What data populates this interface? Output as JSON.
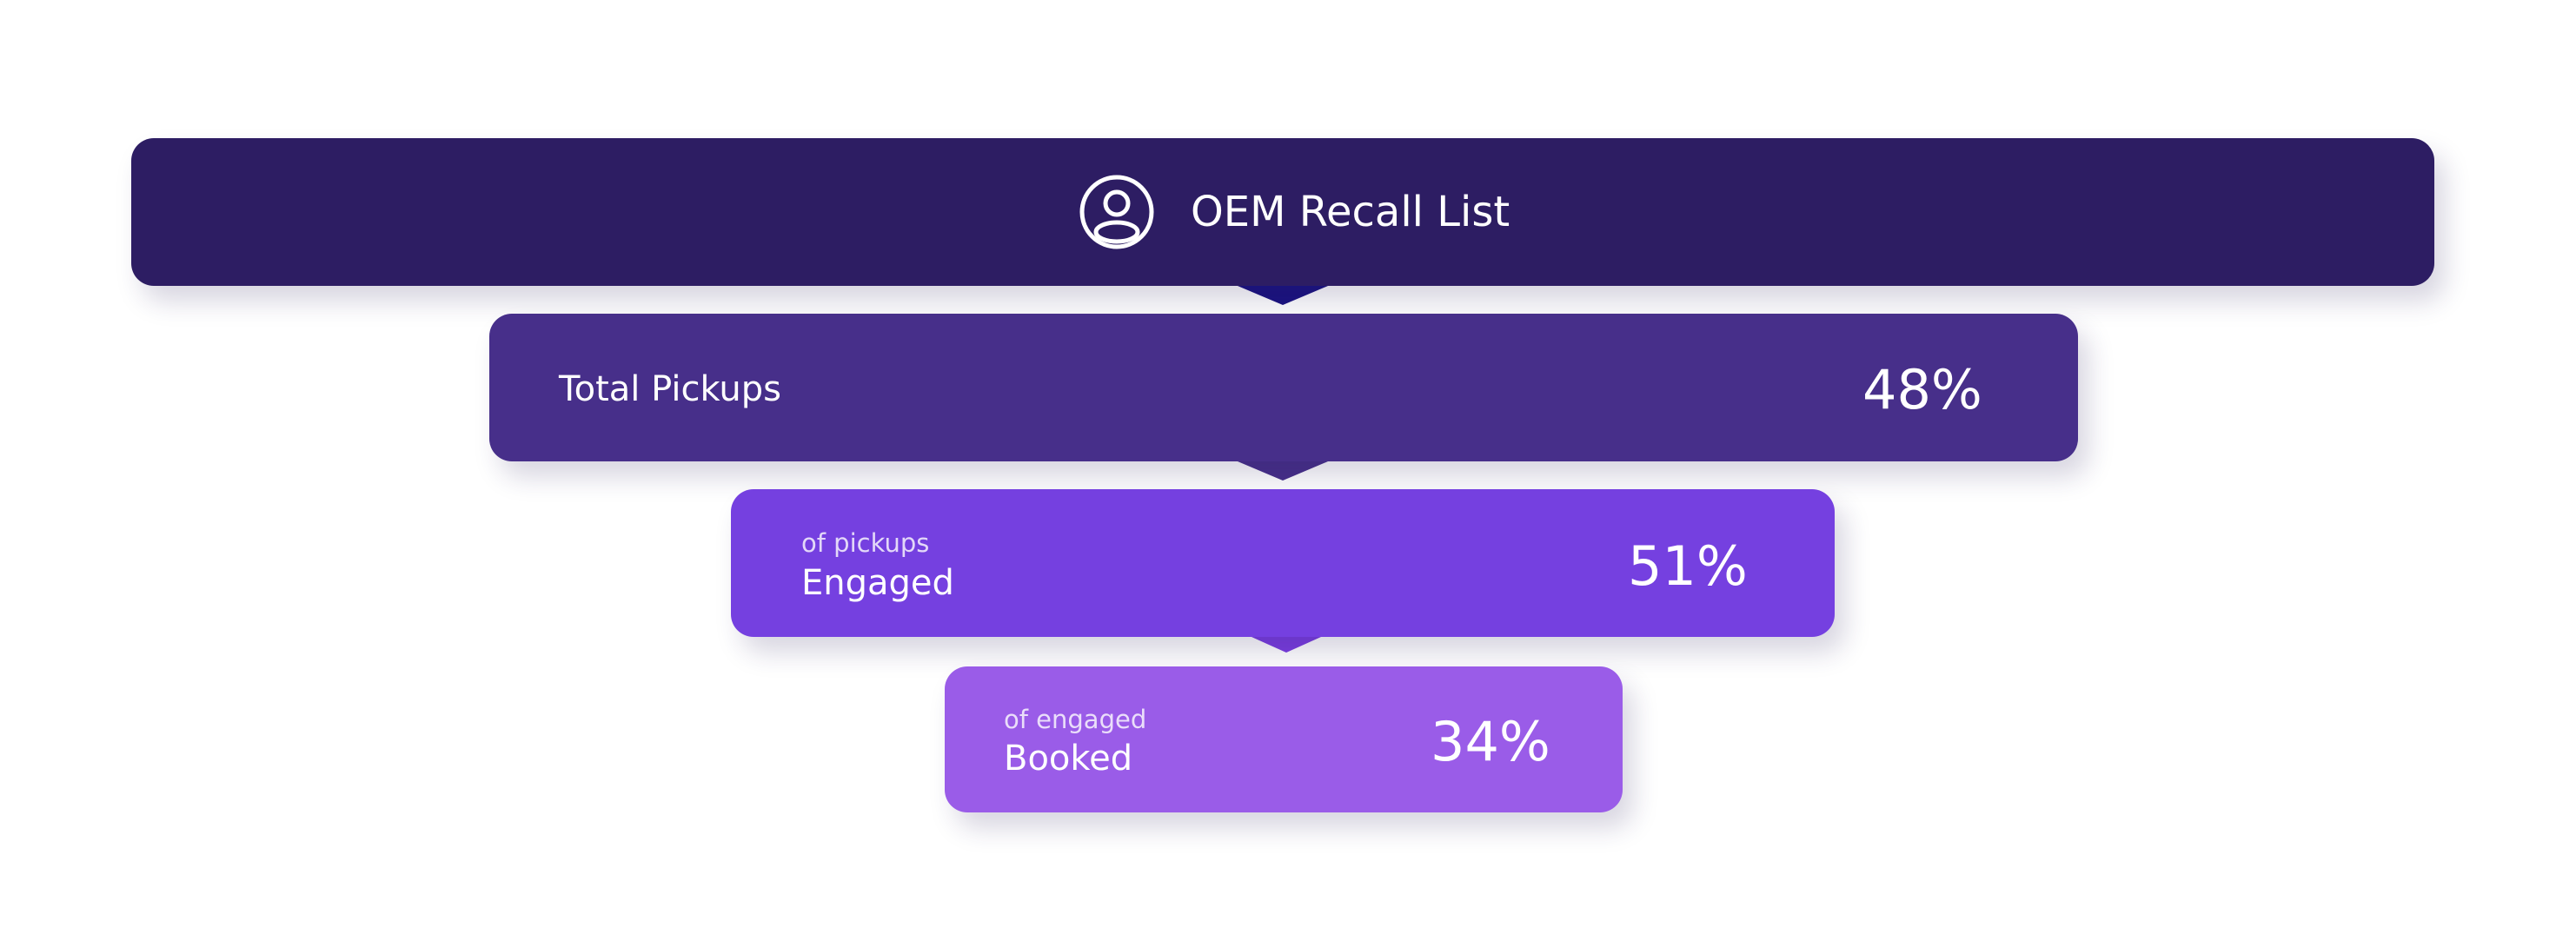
{
  "title": "OEM Recall List",
  "stages": [
    {
      "label": "Total Pickups",
      "value": "48%"
    },
    {
      "sublabel": "of pickups",
      "label": "Engaged",
      "value": "51%"
    },
    {
      "sublabel": "of engaged",
      "label": "Booked",
      "value": "34%"
    }
  ]
}
